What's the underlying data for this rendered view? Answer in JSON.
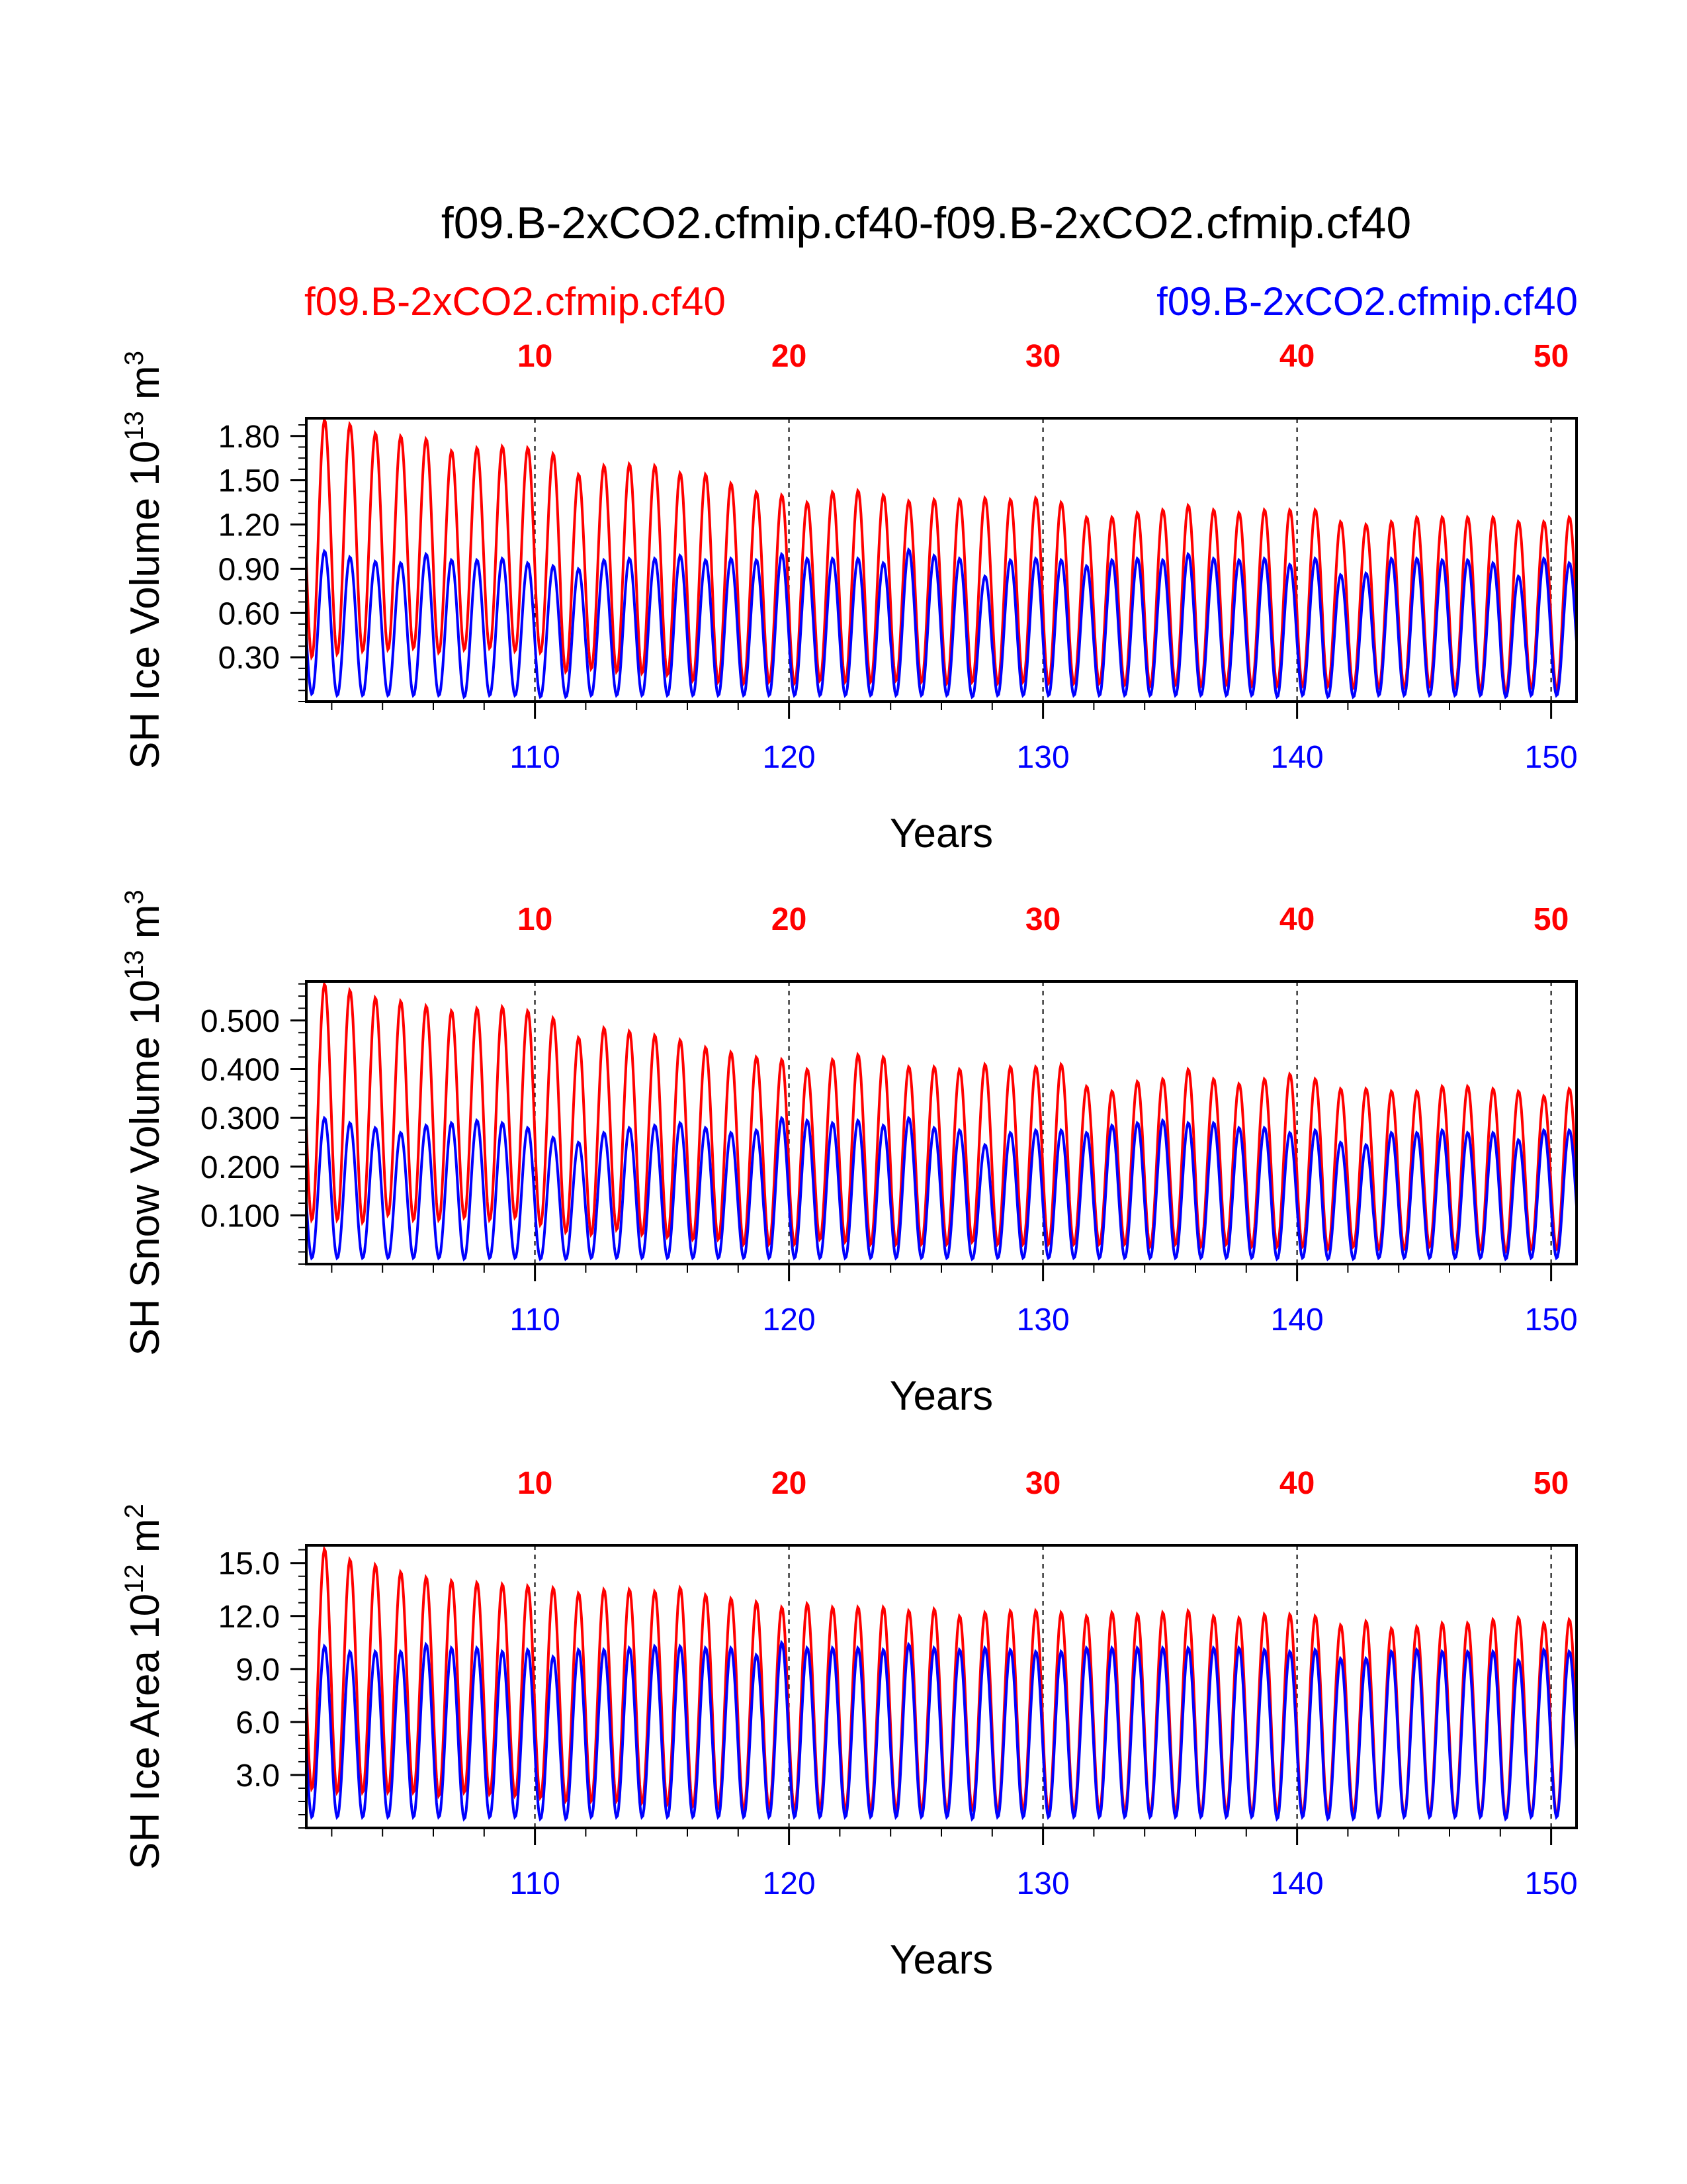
{
  "header": {
    "title": "f09.B-2xCO2.cfmip.cf40-f09.B-2xCO2.cfmip.cf40",
    "case1_label": "f09.B-2xCO2.cfmip.cf40",
    "case2_label": "f09.B-2xCO2.cfmip.cf40"
  },
  "colors": {
    "case1": "#ff0000",
    "case2": "#0000ff",
    "axis": "#000000"
  },
  "chart_data": [
    {
      "type": "line",
      "ylabel": "SH Ice Volume 10^13 m^3",
      "ylabel_base": "SH Ice Volume 10",
      "ylabel_exp": "13",
      "ylabel_unit": " m",
      "ylabel_unit_exp": "3",
      "xlabel": "Years",
      "ylim": [
        0.0,
        1.92
      ],
      "yticks": [
        0.3,
        0.6,
        0.9,
        1.2,
        1.5,
        1.8
      ],
      "ytick_labels": [
        "0.30",
        "0.60",
        "0.90",
        "1.20",
        "1.50",
        "1.80"
      ],
      "x_top_ticks": [
        10,
        20,
        30,
        40,
        50
      ],
      "x_top_labels": [
        "10",
        "20",
        "30",
        "40",
        "50"
      ],
      "x_bottom_ticks": [
        110,
        120,
        130,
        140,
        150
      ],
      "x_bottom_labels": [
        "110",
        "120",
        "130",
        "140",
        "150"
      ],
      "x_top_range": [
        1,
        51
      ],
      "x_bottom_range": [
        101,
        151
      ],
      "series": [
        {
          "name": "f09.B-2xCO2.cfmip.cf40",
          "color": "#ff0000",
          "max": [
            1.91,
            1.88,
            1.82,
            1.8,
            1.78,
            1.7,
            1.72,
            1.73,
            1.72,
            1.68,
            1.54,
            1.6,
            1.61,
            1.6,
            1.55,
            1.54,
            1.48,
            1.42,
            1.4,
            1.35,
            1.42,
            1.43,
            1.4,
            1.36,
            1.37,
            1.37,
            1.38,
            1.37,
            1.38,
            1.35,
            1.25,
            1.25,
            1.28,
            1.3,
            1.33,
            1.3,
            1.28,
            1.3,
            1.3,
            1.3,
            1.22,
            1.2,
            1.22,
            1.25,
            1.25,
            1.25,
            1.25,
            1.22,
            1.22,
            1.25,
            1.25
          ],
          "min": [
            0.3,
            0.32,
            0.34,
            0.35,
            0.36,
            0.33,
            0.35,
            0.36,
            0.34,
            0.33,
            0.2,
            0.22,
            0.2,
            0.19,
            0.18,
            0.14,
            0.13,
            0.12,
            0.13,
            0.12,
            0.14,
            0.13,
            0.13,
            0.14,
            0.13,
            0.12,
            0.13,
            0.12,
            0.13,
            0.12,
            0.12,
            0.12,
            0.11,
            0.1,
            0.11,
            0.1,
            0.11,
            0.1,
            0.1,
            0.1,
            0.1,
            0.09,
            0.09,
            0.09,
            0.1,
            0.09,
            0.08,
            0.06,
            0.09,
            0.08,
            0.1
          ]
        },
        {
          "name": "f09.B-2xCO2.cfmip.cf40",
          "color": "#0000ff",
          "max": [
            1.02,
            0.98,
            0.95,
            0.94,
            1.0,
            0.96,
            0.96,
            0.97,
            0.94,
            0.92,
            0.9,
            0.96,
            0.97,
            0.97,
            0.99,
            0.96,
            0.97,
            0.96,
            1.0,
            0.97,
            0.97,
            0.97,
            0.94,
            1.03,
            0.99,
            0.97,
            0.85,
            0.96,
            0.97,
            0.96,
            0.92,
            0.96,
            0.97,
            0.96,
            1.0,
            0.97,
            0.96,
            0.97,
            0.93,
            0.97,
            0.86,
            0.87,
            0.97,
            0.97,
            0.96,
            0.96,
            0.94,
            0.85,
            0.97,
            0.94,
            0.94
          ],
          "min": [
            0.05,
            0.04,
            0.04,
            0.04,
            0.04,
            0.04,
            0.03,
            0.04,
            0.04,
            0.03,
            0.03,
            0.04,
            0.04,
            0.04,
            0.04,
            0.04,
            0.04,
            0.04,
            0.04,
            0.04,
            0.04,
            0.04,
            0.04,
            0.04,
            0.04,
            0.04,
            0.03,
            0.04,
            0.04,
            0.04,
            0.04,
            0.04,
            0.04,
            0.04,
            0.04,
            0.04,
            0.04,
            0.04,
            0.03,
            0.04,
            0.03,
            0.03,
            0.04,
            0.04,
            0.04,
            0.04,
            0.04,
            0.03,
            0.04,
            0.04,
            0.04
          ]
        }
      ]
    },
    {
      "type": "line",
      "ylabel": "SH Snow Volume 10^13 m^3",
      "ylabel_base": "SH Snow Volume 10",
      "ylabel_exp": "13",
      "ylabel_unit": " m",
      "ylabel_unit_exp": "3",
      "xlabel": "Years",
      "ylim": [
        0.0,
        0.58
      ],
      "yticks": [
        0.1,
        0.2,
        0.3,
        0.4,
        0.5
      ],
      "ytick_labels": [
        "0.100",
        "0.200",
        "0.300",
        "0.400",
        "0.500"
      ],
      "x_top_ticks": [
        10,
        20,
        30,
        40,
        50
      ],
      "x_top_labels": [
        "10",
        "20",
        "30",
        "40",
        "50"
      ],
      "x_bottom_ticks": [
        110,
        120,
        130,
        140,
        150
      ],
      "x_bottom_labels": [
        "110",
        "120",
        "130",
        "140",
        "150"
      ],
      "x_top_range": [
        1,
        51
      ],
      "x_bottom_range": [
        101,
        151
      ],
      "series": [
        {
          "name": "f09.B-2xCO2.cfmip.cf40",
          "color": "#ff0000",
          "max": [
            0.575,
            0.562,
            0.547,
            0.54,
            0.53,
            0.52,
            0.525,
            0.528,
            0.52,
            0.505,
            0.465,
            0.485,
            0.478,
            0.47,
            0.46,
            0.445,
            0.435,
            0.425,
            0.42,
            0.4,
            0.42,
            0.43,
            0.425,
            0.405,
            0.405,
            0.4,
            0.41,
            0.405,
            0.405,
            0.41,
            0.365,
            0.355,
            0.375,
            0.38,
            0.4,
            0.38,
            0.37,
            0.38,
            0.39,
            0.38,
            0.36,
            0.36,
            0.355,
            0.355,
            0.365,
            0.365,
            0.36,
            0.355,
            0.345,
            0.36,
            0.355
          ],
          "min": [
            0.09,
            0.09,
            0.085,
            0.1,
            0.09,
            0.09,
            0.095,
            0.09,
            0.095,
            0.08,
            0.065,
            0.06,
            0.07,
            0.06,
            0.055,
            0.05,
            0.05,
            0.04,
            0.04,
            0.04,
            0.05,
            0.045,
            0.04,
            0.04,
            0.04,
            0.04,
            0.045,
            0.04,
            0.04,
            0.04,
            0.04,
            0.04,
            0.04,
            0.035,
            0.04,
            0.035,
            0.04,
            0.035,
            0.035,
            0.035,
            0.03,
            0.035,
            0.03,
            0.03,
            0.035,
            0.03,
            0.03,
            0.025,
            0.03,
            0.03,
            0.03
          ]
        },
        {
          "name": "f09.B-2xCO2.cfmip.cf40",
          "color": "#0000ff",
          "max": [
            0.3,
            0.29,
            0.28,
            0.27,
            0.285,
            0.29,
            0.295,
            0.29,
            0.28,
            0.26,
            0.25,
            0.27,
            0.28,
            0.285,
            0.29,
            0.28,
            0.27,
            0.275,
            0.3,
            0.295,
            0.29,
            0.295,
            0.285,
            0.3,
            0.28,
            0.275,
            0.245,
            0.27,
            0.275,
            0.275,
            0.27,
            0.285,
            0.29,
            0.295,
            0.29,
            0.29,
            0.28,
            0.28,
            0.27,
            0.275,
            0.25,
            0.245,
            0.27,
            0.27,
            0.275,
            0.27,
            0.27,
            0.255,
            0.275,
            0.275,
            0.275
          ],
          "min": [
            0.012,
            0.012,
            0.012,
            0.012,
            0.012,
            0.012,
            0.01,
            0.012,
            0.012,
            0.01,
            0.01,
            0.012,
            0.012,
            0.012,
            0.012,
            0.012,
            0.012,
            0.012,
            0.012,
            0.012,
            0.012,
            0.012,
            0.012,
            0.012,
            0.012,
            0.012,
            0.01,
            0.012,
            0.012,
            0.012,
            0.012,
            0.012,
            0.012,
            0.012,
            0.012,
            0.012,
            0.012,
            0.012,
            0.01,
            0.012,
            0.01,
            0.01,
            0.012,
            0.012,
            0.012,
            0.012,
            0.012,
            0.01,
            0.012,
            0.012,
            0.012
          ]
        }
      ]
    },
    {
      "type": "line",
      "ylabel": "SH Ice Area 10^12 m^2",
      "ylabel_base": "SH Ice Area 10",
      "ylabel_exp": "12",
      "ylabel_unit": " m",
      "ylabel_unit_exp": "2",
      "xlabel": "Years",
      "ylim": [
        0.0,
        16.0
      ],
      "yticks": [
        3.0,
        6.0,
        9.0,
        12.0,
        15.0
      ],
      "ytick_labels": [
        "3.0",
        "6.0",
        "9.0",
        "12.0",
        "15.0"
      ],
      "x_top_ticks": [
        10,
        20,
        30,
        40,
        50
      ],
      "x_top_labels": [
        "10",
        "20",
        "30",
        "40",
        "50"
      ],
      "x_bottom_ticks": [
        110,
        120,
        130,
        140,
        150
      ],
      "x_bottom_labels": [
        "110",
        "120",
        "130",
        "140",
        "150"
      ],
      "x_top_range": [
        1,
        51
      ],
      "x_bottom_range": [
        101,
        151
      ],
      "series": [
        {
          "name": "f09.B-2xCO2.cfmip.cf40",
          "color": "#ff0000",
          "max": [
            15.8,
            15.2,
            14.9,
            14.5,
            14.2,
            14.0,
            13.9,
            13.8,
            13.7,
            13.6,
            13.3,
            13.5,
            13.5,
            13.4,
            13.6,
            13.2,
            13.0,
            12.8,
            12.5,
            12.7,
            12.5,
            12.5,
            12.5,
            12.3,
            12.4,
            12.0,
            12.2,
            12.3,
            12.3,
            12.2,
            12.0,
            12.2,
            12.1,
            12.2,
            12.3,
            12.0,
            11.9,
            12.1,
            12.1,
            12.0,
            11.5,
            11.7,
            11.3,
            11.4,
            11.6,
            11.6,
            11.8,
            11.9,
            11.6,
            11.8,
            11.7
          ],
          "min": [
            2.2,
            2.0,
            2.0,
            2.0,
            2.0,
            1.8,
            2.0,
            1.9,
            1.8,
            1.7,
            1.5,
            1.5,
            1.5,
            1.4,
            1.3,
            1.2,
            1.1,
            1.0,
            1.1,
            1.0,
            1.1,
            1.0,
            1.0,
            1.0,
            1.0,
            0.9,
            1.0,
            0.9,
            1.0,
            0.9,
            0.9,
            0.9,
            0.9,
            0.8,
            0.9,
            0.8,
            0.9,
            0.8,
            0.8,
            0.8,
            0.8,
            0.8,
            0.7,
            0.7,
            0.8,
            0.7,
            0.7,
            0.6,
            0.7,
            0.7,
            0.8
          ]
        },
        {
          "name": "f09.B-2xCO2.cfmip.cf40",
          "color": "#0000ff",
          "max": [
            10.3,
            10.0,
            10.0,
            10.0,
            10.4,
            10.2,
            10.2,
            10.0,
            10.1,
            9.7,
            10.1,
            10.1,
            10.2,
            10.3,
            10.3,
            10.2,
            10.2,
            9.8,
            10.5,
            10.2,
            10.2,
            10.2,
            10.1,
            10.4,
            10.2,
            10.1,
            10.2,
            10.1,
            10.0,
            10.0,
            10.2,
            10.2,
            10.2,
            10.2,
            10.2,
            10.2,
            10.2,
            10.1,
            10.0,
            10.1,
            9.6,
            9.6,
            10.0,
            10.1,
            10.0,
            10.0,
            10.0,
            9.5,
            10.1,
            10.0,
            9.8
          ],
          "min": [
            0.6,
            0.6,
            0.6,
            0.6,
            0.6,
            0.6,
            0.5,
            0.6,
            0.6,
            0.5,
            0.5,
            0.6,
            0.6,
            0.6,
            0.6,
            0.6,
            0.6,
            0.6,
            0.6,
            0.6,
            0.6,
            0.6,
            0.6,
            0.6,
            0.6,
            0.6,
            0.5,
            0.6,
            0.6,
            0.6,
            0.6,
            0.6,
            0.6,
            0.6,
            0.6,
            0.6,
            0.6,
            0.6,
            0.5,
            0.6,
            0.5,
            0.5,
            0.6,
            0.6,
            0.6,
            0.6,
            0.6,
            0.5,
            0.6,
            0.6,
            0.6
          ]
        }
      ]
    }
  ]
}
